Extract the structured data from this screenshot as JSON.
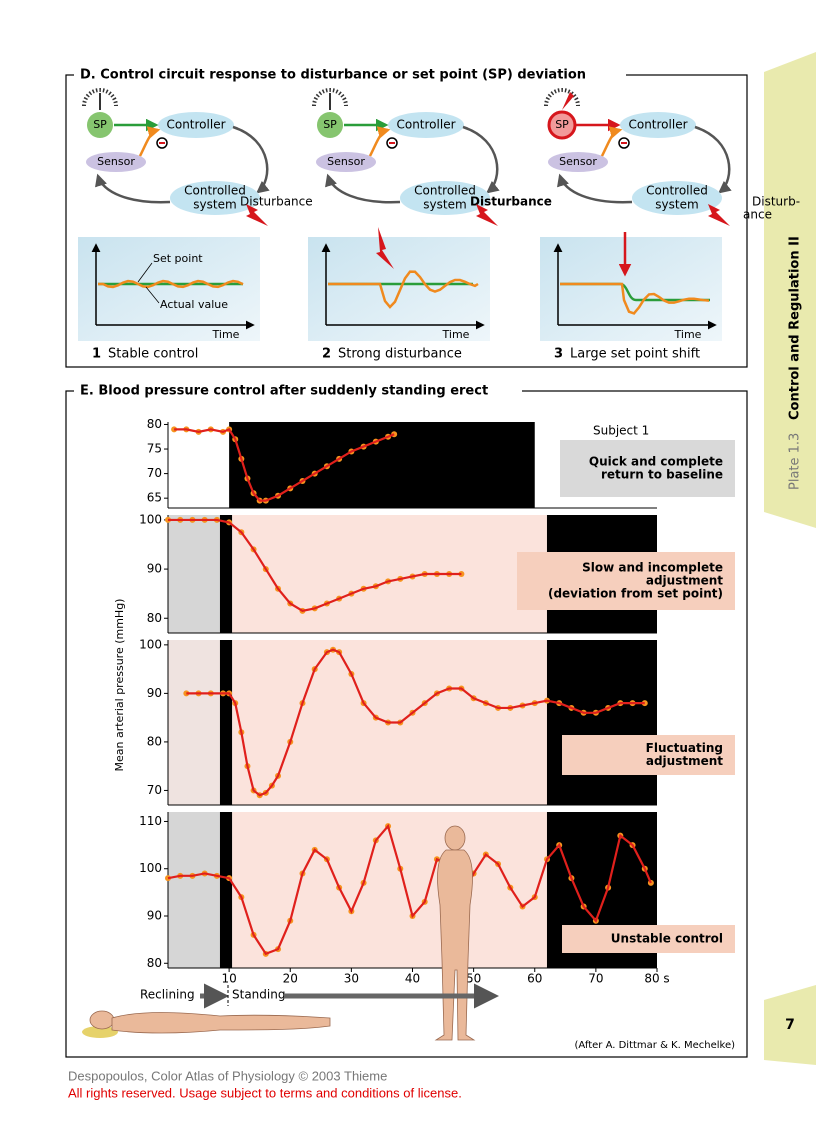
{
  "section_d": {
    "title": "D. Control circuit response to disturbance or set point (SP) deviation",
    "panels": [
      {
        "sp": "SP",
        "controller": "Controller",
        "sensor": "Sensor",
        "system": [
          "Controlled",
          "system"
        ],
        "disturbance": [
          "Disturbance"
        ],
        "labels": [
          "Set point",
          "Actual value"
        ],
        "time": "Time",
        "number": "1",
        "caption": "Stable control"
      },
      {
        "sp": "SP",
        "controller": "Controller",
        "sensor": "Sensor",
        "system": [
          "Controlled",
          "system"
        ],
        "disturbance": [
          "Disturbance"
        ],
        "time": "Time",
        "number": "2",
        "caption": "Strong disturbance"
      },
      {
        "sp": "SP",
        "controller": "Controller",
        "sensor": "Sensor",
        "system": [
          "Controlled",
          "system"
        ],
        "disturbance": [
          "Disturb-",
          "ance"
        ],
        "time": "Time",
        "number": "3",
        "caption": "Large set point shift"
      }
    ]
  },
  "section_e": {
    "title": "E. Blood pressure control after suddenly standing erect",
    "y_label": "Mean arterial pressure (mmHg)",
    "reclining": "Reclining",
    "standing": "Standing",
    "credit": "(After A. Dittmar & K. Mechelke)"
  },
  "chart_data": [
    {
      "type": "line",
      "label": "Subject 1",
      "annotation": [
        "Quick and complete",
        "return to baseline"
      ],
      "annotation_color": "#d9d9d9",
      "xlim": [
        0,
        80
      ],
      "ylim": [
        63,
        80.5
      ],
      "yticks": [
        65,
        70,
        75,
        80
      ],
      "regions": [
        {
          "from": 10,
          "to": 60,
          "color": "#000000"
        }
      ],
      "x": [
        1,
        3,
        5,
        7,
        9,
        10,
        11,
        12,
        13,
        14,
        15,
        16,
        18,
        20,
        22,
        24,
        26,
        28,
        30,
        32,
        34,
        36,
        37
      ],
      "series": [
        {
          "color": "#e0201c",
          "marker_color": "#f7931e",
          "values": [
            79,
            79,
            78.5,
            79,
            78.5,
            79,
            77,
            73,
            69,
            66,
            64.5,
            64.5,
            65.5,
            67,
            68.5,
            70,
            71.5,
            73,
            74.5,
            75.5,
            76.5,
            77.5,
            78
          ]
        }
      ]
    },
    {
      "type": "line",
      "annotation": [
        "Slow and incomplete",
        "adjustment",
        "(deviation from set point)"
      ],
      "annotation_color": "#f6cfbd",
      "xlim": [
        0,
        80
      ],
      "ylim": [
        77,
        101
      ],
      "yticks": [
        80,
        90,
        100
      ],
      "regions": [
        {
          "from": 0,
          "to": 8.5,
          "color": "#d6d6d6"
        },
        {
          "from": 8.5,
          "to": 10.5,
          "color": "#000000"
        },
        {
          "from": 10.5,
          "to": 62,
          "color": "#fbe3dc"
        },
        {
          "from": 62,
          "to": 80,
          "color": "#000000"
        }
      ],
      "x": [
        0,
        2,
        4,
        6,
        8,
        10,
        12,
        14,
        16,
        18,
        20,
        22,
        24,
        26,
        28,
        30,
        32,
        34,
        36,
        38,
        40,
        42,
        44,
        46,
        48
      ],
      "series": [
        {
          "color": "#e0201c",
          "marker_color": "#f7931e",
          "values": [
            100,
            100,
            100,
            100,
            100,
            99.5,
            97.5,
            94,
            90,
            86,
            83,
            81.5,
            82,
            83,
            84,
            85,
            86,
            86.5,
            87.5,
            88,
            88.5,
            89,
            89,
            89,
            89
          ]
        }
      ]
    },
    {
      "type": "line",
      "annotation": [
        "Fluctuating",
        "adjustment"
      ],
      "annotation_color": "#f6cfbd",
      "xlim": [
        0,
        80
      ],
      "ylim": [
        67,
        101
      ],
      "yticks": [
        70,
        80,
        90,
        100
      ],
      "regions": [
        {
          "from": 0,
          "to": 8.5,
          "color": "#efe3e0"
        },
        {
          "from": 8.5,
          "to": 10.5,
          "color": "#000000"
        },
        {
          "from": 10.5,
          "to": 62,
          "color": "#fbe3dc"
        },
        {
          "from": 62,
          "to": 80,
          "color": "#000000"
        }
      ],
      "x": [
        3,
        5,
        7,
        9,
        10,
        11,
        12,
        13,
        14,
        15,
        16,
        17,
        18,
        20,
        22,
        24,
        26,
        27,
        28,
        30,
        32,
        34,
        36,
        38,
        40,
        42,
        44,
        46,
        48,
        50,
        52,
        54,
        56,
        58,
        60,
        62,
        64,
        66,
        68,
        70,
        72,
        74,
        76,
        78
      ],
      "series": [
        {
          "color": "#e0201c",
          "marker_color": "#f7931e",
          "values": [
            90,
            90,
            90,
            90,
            90,
            88,
            82,
            75,
            70,
            69,
            69.5,
            71,
            73,
            80,
            88,
            95,
            98.5,
            99,
            98.5,
            94,
            88,
            85,
            84,
            84,
            86,
            88,
            90,
            91,
            91,
            89,
            88,
            87,
            87,
            87.5,
            88,
            88.5,
            88,
            87,
            86,
            86,
            87,
            88,
            88,
            88
          ]
        }
      ]
    },
    {
      "type": "line",
      "annotation": [
        "Unstable control"
      ],
      "annotation_color": "#f6cfbd",
      "xlim": [
        0,
        80
      ],
      "ylim": [
        79,
        112
      ],
      "yticks": [
        80,
        90,
        100,
        110
      ],
      "xticks": [
        10,
        20,
        30,
        40,
        50,
        60,
        70,
        {
          "value": 80,
          "label": "80 s"
        }
      ],
      "regions": [
        {
          "from": 0,
          "to": 8.5,
          "color": "#d6d6d6"
        },
        {
          "from": 8.5,
          "to": 10.5,
          "color": "#000000"
        },
        {
          "from": 10.5,
          "to": 62,
          "color": "#fbe3dc"
        },
        {
          "from": 62,
          "to": 80,
          "color": "#000000"
        }
      ],
      "x": [
        0,
        2,
        4,
        6,
        8,
        10,
        12,
        14,
        16,
        18,
        20,
        22,
        24,
        26,
        28,
        30,
        32,
        34,
        36,
        38,
        40,
        42,
        44,
        46,
        48,
        50,
        52,
        54,
        56,
        58,
        60,
        62,
        64,
        66,
        68,
        70,
        72,
        74,
        76,
        78,
        79
      ],
      "series": [
        {
          "color": "#e0201c",
          "marker_color": "#f7931e",
          "values": [
            98,
            98.5,
            98.5,
            99,
            98.5,
            98,
            94,
            86,
            82,
            83,
            89,
            99,
            104,
            102,
            96,
            91,
            97,
            106,
            109,
            100,
            90,
            93,
            102,
            101,
            94,
            99,
            103,
            101,
            96,
            92,
            94,
            102,
            105,
            98,
            92,
            89,
            96,
            107,
            105,
            100,
            97
          ]
        }
      ]
    }
  ],
  "sidebar": {
    "plate": "Plate 1.3",
    "title": "Control and Regulation II",
    "page": "7"
  },
  "footer": {
    "line1": "Despopoulos, Color Atlas of Physiology © 2003 Thieme",
    "line2": "All rights reserved. Usage subject to terms and conditions of license."
  }
}
